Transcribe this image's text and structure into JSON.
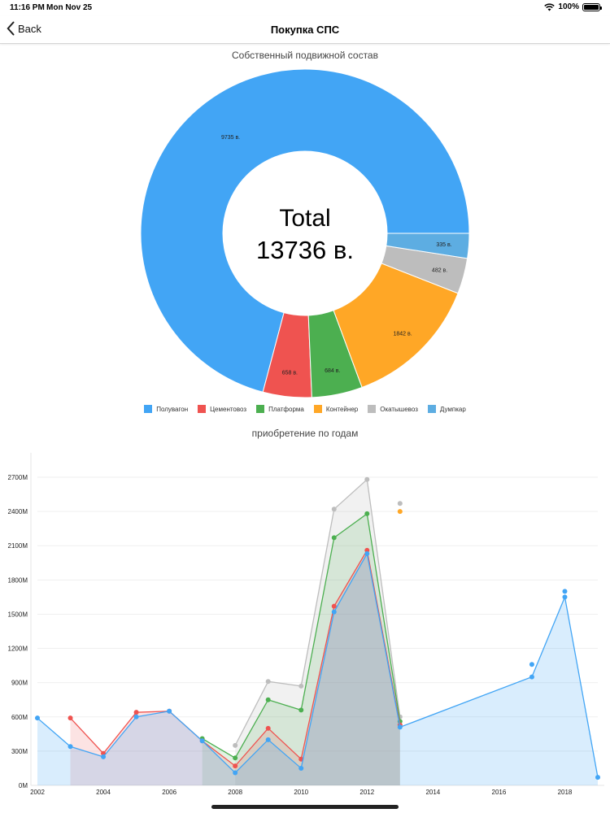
{
  "status": {
    "time": "11:16 PM",
    "date": "Mon Nov 25",
    "battery": "100%"
  },
  "nav": {
    "back_label": "Back",
    "title": "Покупка СПС"
  },
  "pie": {
    "title": "Собственный подвижной состав",
    "center_line1": "Total",
    "center_line2": "13736 в."
  },
  "line": {
    "title": "приобретение по годам"
  },
  "chart_data": [
    {
      "type": "pie",
      "title": "Собственный подвижной состав",
      "categories": [
        "Полувагон",
        "Цементовоз",
        "Платформа",
        "Контейнер",
        "Окатышевоз",
        "Думпкар"
      ],
      "values": [
        9735,
        658,
        684,
        1842,
        482,
        335
      ],
      "labels": [
        "9735 в.",
        "658 в.",
        "684 в.",
        "1842 в.",
        "482 в.",
        "335 в."
      ],
      "colors": [
        "#42a5f5",
        "#ef5350",
        "#4caf50",
        "#ffa726",
        "#bdbdbd",
        "#5dade2"
      ],
      "total_label": "13736 в.",
      "legend_position": "bottom"
    },
    {
      "type": "area",
      "title": "приобретение по годам",
      "y_ticks": [
        "0M",
        "300M",
        "600M",
        "900M",
        "1200M",
        "1500M",
        "1800M",
        "2100M",
        "2400M",
        "2700M"
      ],
      "x_ticks": [
        "2002",
        "2004",
        "2006",
        "2008",
        "2010",
        "2012",
        "2014",
        "2016",
        "2018"
      ],
      "ylim": [
        0,
        2800
      ],
      "xlim": [
        2002,
        2019
      ],
      "grid": true,
      "series": [
        {
          "color": "#bdbdbd",
          "points": [
            [
              2008,
              350
            ],
            [
              2009,
              910
            ],
            [
              2010,
              870
            ],
            [
              2011,
              2420
            ],
            [
              2012,
              2680
            ],
            [
              2013,
              600
            ]
          ],
          "extra_points": [
            [
              2013,
              2470
            ]
          ]
        },
        {
          "color": "#4caf50",
          "points": [
            [
              2007,
              410
            ],
            [
              2008,
              240
            ],
            [
              2009,
              750
            ],
            [
              2010,
              660
            ],
            [
              2011,
              2170
            ],
            [
              2012,
              2380
            ],
            [
              2013,
              560
            ]
          ]
        },
        {
          "color": "#ef5350",
          "points": [
            [
              2003,
              590
            ],
            [
              2004,
              280
            ],
            [
              2005,
              640
            ],
            [
              2006,
              650
            ],
            [
              2007,
              390
            ],
            [
              2008,
              170
            ],
            [
              2009,
              500
            ],
            [
              2010,
              230
            ],
            [
              2011,
              1570
            ],
            [
              2012,
              2060
            ],
            [
              2013,
              530
            ]
          ]
        },
        {
          "color": "#42a5f5",
          "points": [
            [
              2002,
              590
            ],
            [
              2003,
              340
            ],
            [
              2004,
              250
            ],
            [
              2005,
              600
            ],
            [
              2006,
              650
            ],
            [
              2007,
              390
            ],
            [
              2008,
              110
            ],
            [
              2009,
              400
            ],
            [
              2010,
              150
            ],
            [
              2011,
              1520
            ],
            [
              2012,
              2030
            ],
            [
              2013,
              510
            ],
            [
              2017,
              950
            ],
            [
              2018,
              1650
            ],
            [
              2019,
              70
            ]
          ],
          "extra_points": [
            [
              2017,
              1060
            ],
            [
              2018,
              1700
            ]
          ]
        },
        {
          "color": "#ffa726",
          "points": [],
          "extra_points": [
            [
              2013,
              2400
            ]
          ]
        }
      ]
    }
  ]
}
